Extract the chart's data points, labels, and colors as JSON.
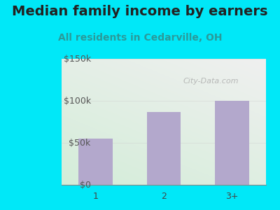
{
  "title": "Median family income by earners",
  "subtitle": "All residents in Cedarville, OH",
  "categories": [
    "1",
    "2",
    "3+"
  ],
  "values": [
    55000,
    87000,
    100000
  ],
  "bar_color": "#b3a8cc",
  "title_color": "#222222",
  "subtitle_color": "#2a9a9a",
  "background_color": "#00e8f8",
  "ylim": [
    0,
    150000
  ],
  "yticks": [
    0,
    50000,
    100000,
    150000
  ],
  "ytick_labels": [
    "$0",
    "$50k",
    "$100k",
    "$150k"
  ],
  "watermark": "City-Data.com",
  "title_fontsize": 14,
  "subtitle_fontsize": 10,
  "tick_fontsize": 9
}
